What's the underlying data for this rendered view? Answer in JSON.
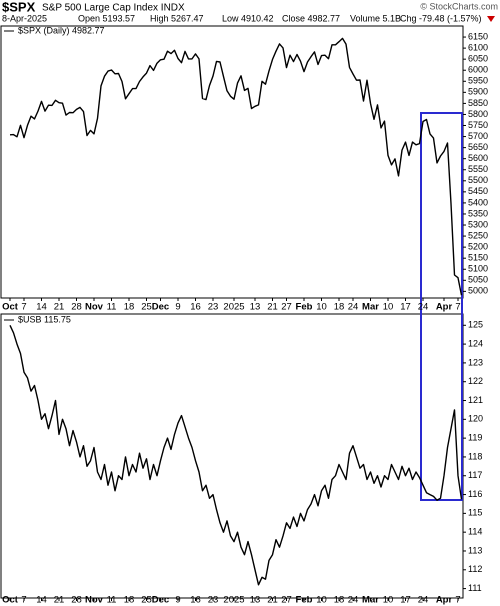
{
  "header": {
    "symbol": "$SPX",
    "name": "S&P 500 Large Cap Index INDX",
    "source": "© StockCharts.com",
    "date": "8-Apr-2025",
    "stats": [
      "Open 5193.57",
      "High 5267.47",
      "Low 4910.42",
      "Close 4982.77",
      "Volume 5.1B",
      "Chg -79.48 (-1.57%)"
    ]
  },
  "chart_data": [
    {
      "type": "line",
      "categories": [
        "Oct",
        null,
        null,
        null,
        "7",
        null,
        null,
        null,
        null,
        "14",
        null,
        null,
        null,
        null,
        "21",
        null,
        null,
        null,
        null,
        "28",
        null,
        null,
        null,
        null,
        "Nov",
        null,
        null,
        null,
        null,
        "11",
        null,
        null,
        null,
        null,
        "18",
        null,
        null,
        null,
        null,
        "25",
        null,
        null,
        null,
        "Dec",
        null,
        null,
        null,
        null,
        "9",
        null,
        null,
        null,
        null,
        "16",
        null,
        null,
        null,
        null,
        "23",
        null,
        null,
        null,
        null,
        null,
        "2025",
        null,
        null,
        null,
        null,
        null,
        "13",
        null,
        null,
        null,
        null,
        "21",
        null,
        null,
        null,
        "27",
        null,
        null,
        null,
        null,
        "Feb",
        null,
        null,
        null,
        null,
        "10",
        null,
        null,
        null,
        null,
        "18",
        null,
        null,
        null,
        "24",
        null,
        null,
        null,
        null,
        "Mar",
        null,
        null,
        null,
        null,
        "10",
        null,
        null,
        null,
        null,
        "17",
        null,
        null,
        null,
        null,
        "24",
        null,
        null,
        null,
        null,
        null,
        "Apr",
        null,
        null,
        null,
        "7",
        null
      ],
      "series": [
        {
          "name": "$SPX (Daily) 4982.77",
          "color": "#000000",
          "values": [
            5708,
            5709,
            5699,
            5751,
            5695,
            5751,
            5792,
            5780,
            5815,
            5859,
            5815,
            5842,
            5841,
            5864,
            5853,
            5851,
            5797,
            5809,
            5808,
            5823,
            5832,
            5813,
            5705,
            5728,
            5712,
            5782,
            5929,
            5973,
            5996,
            6001,
            5984,
            5985,
            5949,
            5871,
            5894,
            5917,
            5917,
            5949,
            5970,
            5987,
            6021,
            5999,
            6032,
            6047,
            6050,
            6086,
            6075,
            6090,
            6053,
            6034,
            6085,
            6051,
            6051,
            6074,
            6051,
            5872,
            5867,
            5931,
            5974,
            6040,
            6037,
            5971,
            5907,
            5882,
            5869,
            5942,
            5975,
            5909,
            5918,
            5827,
            5837,
            5843,
            5950,
            5937,
            5997,
            6049,
            6086,
            6119,
            6101,
            6012,
            6068,
            6039,
            6071,
            6041,
            5994,
            6037,
            6061,
            6083,
            6026,
            6066,
            6068,
            6052,
            6115,
            6115,
            6129,
            6144,
            6118,
            6013,
            5983,
            5955,
            5956,
            5861,
            5955,
            5850,
            5778,
            5843,
            5739,
            5770,
            5615,
            5572,
            5599,
            5522,
            5639,
            5675,
            5615,
            5675,
            5663,
            5668,
            5768,
            5777,
            5712,
            5693,
            5581,
            5612,
            5633,
            5671,
            5397,
            5074,
            5062,
            4982.77
          ]
        }
      ],
      "ylim": [
        4970,
        6200
      ],
      "yticks": [
        5000,
        5050,
        5100,
        5150,
        5200,
        5250,
        5300,
        5350,
        5400,
        5450,
        5500,
        5550,
        5600,
        5650,
        5700,
        5750,
        5800,
        5850,
        5900,
        5950,
        6000,
        6050,
        6100,
        6150
      ]
    },
    {
      "type": "line",
      "categories": [
        "Oct",
        null,
        null,
        null,
        "7",
        null,
        null,
        null,
        null,
        "14",
        null,
        null,
        null,
        null,
        "21",
        null,
        null,
        null,
        null,
        "28",
        null,
        null,
        null,
        null,
        "Nov",
        null,
        null,
        null,
        null,
        "11",
        null,
        null,
        null,
        null,
        "18",
        null,
        null,
        null,
        null,
        "25",
        null,
        null,
        null,
        "Dec",
        null,
        null,
        null,
        null,
        "9",
        null,
        null,
        null,
        null,
        "16",
        null,
        null,
        null,
        null,
        "23",
        null,
        null,
        null,
        null,
        null,
        "2025",
        null,
        null,
        null,
        null,
        null,
        "13",
        null,
        null,
        null,
        null,
        "21",
        null,
        null,
        null,
        "27",
        null,
        null,
        null,
        null,
        "Feb",
        null,
        null,
        null,
        null,
        "10",
        null,
        null,
        null,
        null,
        "18",
        null,
        null,
        null,
        "24",
        null,
        null,
        null,
        null,
        "Mar",
        null,
        null,
        null,
        null,
        "10",
        null,
        null,
        null,
        null,
        "17",
        null,
        null,
        null,
        null,
        "24",
        null,
        null,
        null,
        null,
        null,
        "Apr",
        null,
        null,
        null,
        "7",
        null
      ],
      "series": [
        {
          "name": "$USB 115.75",
          "color": "#000000",
          "values": [
            125,
            124.6,
            124,
            123.5,
            122.5,
            122.2,
            121.5,
            121.8,
            121,
            120,
            120.3,
            119.5,
            120.2,
            121,
            119.2,
            120,
            119.5,
            118.6,
            119.4,
            118.8,
            118,
            118.6,
            117.5,
            117.8,
            118.5,
            117.2,
            116.8,
            117.6,
            116.5,
            117.2,
            116.2,
            117,
            116.8,
            118,
            117,
            117.6,
            117.2,
            118.2,
            117.4,
            117.9,
            116.8,
            117.6,
            117,
            117.8,
            118.5,
            119,
            118.4,
            119.2,
            119.8,
            120.2,
            119.6,
            119,
            118.5,
            117.8,
            117.2,
            116.2,
            116.5,
            115.8,
            116,
            115.2,
            114.5,
            114,
            114.6,
            113.8,
            113.5,
            114,
            113.2,
            112.8,
            113.5,
            112.8,
            112,
            111.2,
            111.6,
            111.5,
            112.5,
            112.8,
            113.6,
            113.2,
            113.8,
            114.5,
            114.2,
            114.8,
            114.3,
            115,
            114.6,
            115.2,
            115.5,
            116,
            115.4,
            116.2,
            116.5,
            115.8,
            116.8,
            117,
            117.6,
            117.2,
            116.8,
            118.2,
            118.6,
            118,
            117.4,
            117.6,
            116.8,
            117.2,
            116.6,
            117,
            116.4,
            117,
            116.8,
            117.6,
            117.2,
            116.8,
            117.5,
            117,
            117.4,
            116.8,
            117.2,
            116.9,
            116.5,
            116.1,
            116,
            115.9,
            115.7,
            115.8,
            117,
            118.5,
            119.5,
            120.5,
            117,
            115.75
          ]
        }
      ],
      "ylim": [
        110.5,
        125.6
      ],
      "yticks": [
        111,
        112,
        113,
        114,
        115,
        116,
        117,
        118,
        119,
        120,
        121,
        122,
        123,
        124,
        125
      ]
    }
  ]
}
